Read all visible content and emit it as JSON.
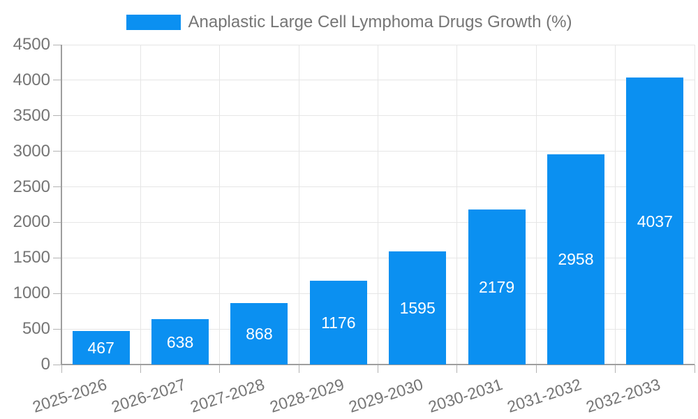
{
  "chart_data": {
    "type": "bar",
    "title": "Anaplastic Large Cell Lymphoma Drugs Growth (%)",
    "legend_position": "top",
    "categories": [
      "2025-2026",
      "2026-2027",
      "2027-2028",
      "2028-2029",
      "2029-2030",
      "2030-2031",
      "2031-2032",
      "2032-2033"
    ],
    "series": [
      {
        "name": "Anaplastic Large Cell Lymphoma Drugs Growth (%)",
        "values": [
          467,
          638,
          868,
          1176,
          1595,
          2179,
          2958,
          4037
        ]
      }
    ],
    "value_labels": [
      "467",
      "638",
      "868",
      "1176",
      "1595",
      "2179",
      "2958",
      "4037"
    ],
    "xlabel": "",
    "ylabel": "",
    "ylim": [
      0,
      4500
    ],
    "ytick_step": 500,
    "yticks": [
      "0",
      "500",
      "1000",
      "1500",
      "2000",
      "2500",
      "3000",
      "3500",
      "4000",
      "4500"
    ],
    "grid": "on",
    "bar_color": "#0b90f1",
    "value_label_color": "#ffffff",
    "axis_text_color": "#757575",
    "grid_color": "#e6e6e6",
    "axis_line_color": "#9e9e9e"
  }
}
